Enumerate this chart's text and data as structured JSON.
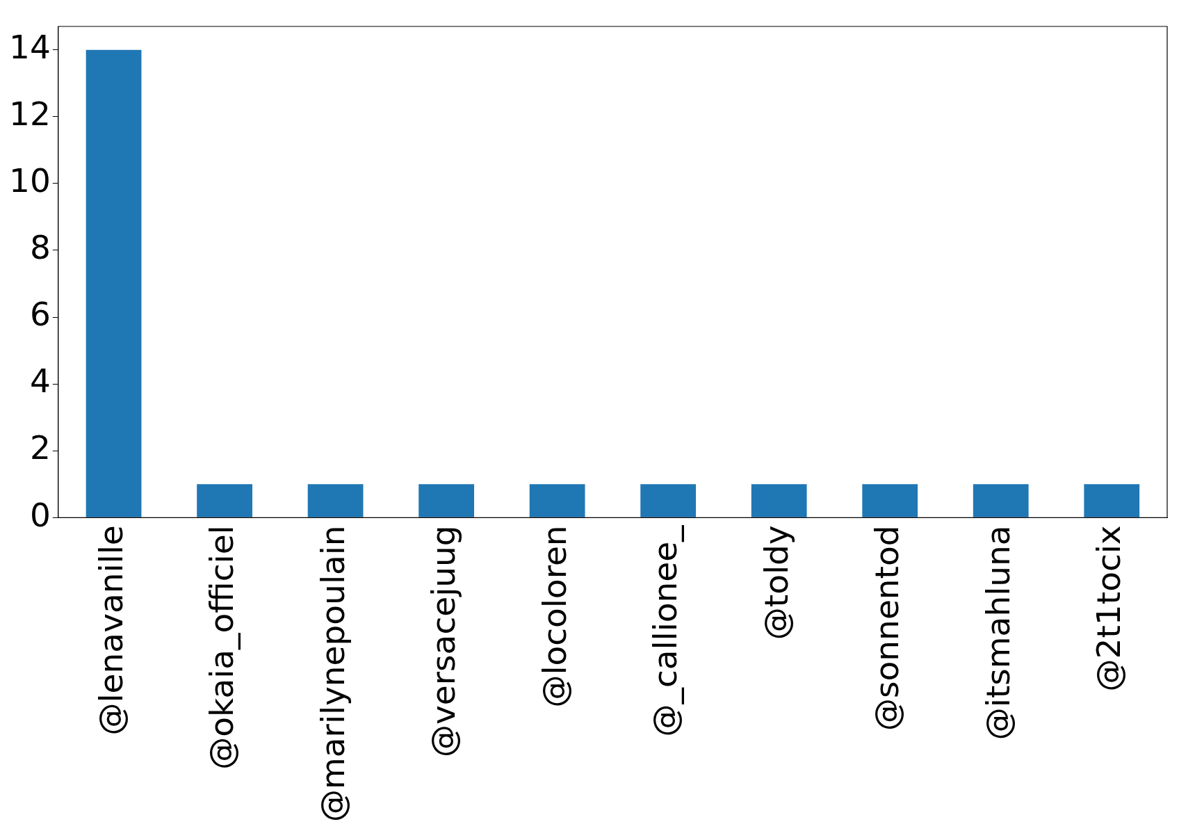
{
  "chart_data": {
    "type": "bar",
    "categories": [
      "@lenavanille",
      "@okaia_officiel",
      "@marilynepoulain",
      "@versacejuug",
      "@locoloren",
      "@_callionee_",
      "@toldy",
      "@sonnentod",
      "@itsmahluna",
      "@2t1tocix"
    ],
    "values": [
      14,
      1,
      1,
      1,
      1,
      1,
      1,
      1,
      1,
      1
    ],
    "color": "#1f77b4",
    "ylim": [
      0,
      14.7
    ],
    "yticks": [
      0,
      2,
      4,
      6,
      8,
      10,
      12,
      14
    ],
    "grid": false,
    "legend": false
  }
}
